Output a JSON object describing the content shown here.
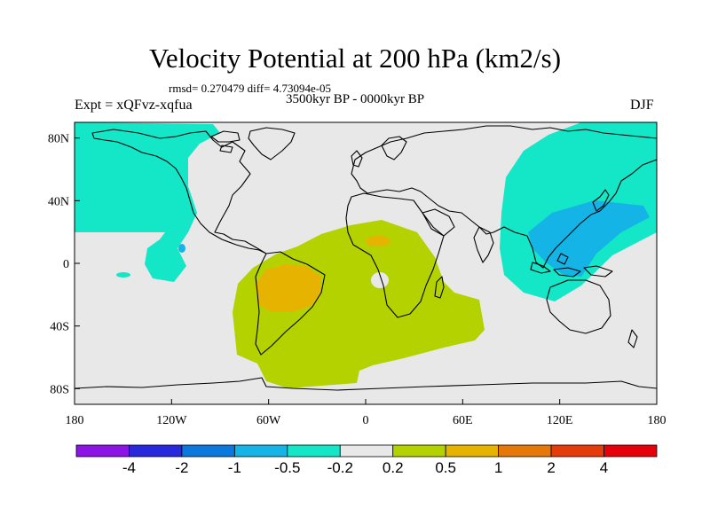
{
  "title": "Velocity Potential at 200 hPa (km2/s)",
  "rmsd_line": "rmsd= 0.270479 diff= 4.73094e-05",
  "experiment": "Expt = xQFvz-xqfua",
  "period": "3500kyr BP - 0000kyr BP",
  "season": "DJF",
  "map": {
    "projection": "cylindrical equidistant",
    "lon_range": [
      -180,
      180
    ],
    "lat_range": [
      -90,
      90
    ],
    "lat_ticks": [
      {
        "value": 80,
        "label": "80N"
      },
      {
        "value": 40,
        "label": "40N"
      },
      {
        "value": 0,
        "label": "0"
      },
      {
        "value": -40,
        "label": "40S"
      },
      {
        "value": -80,
        "label": "80S"
      }
    ],
    "lon_ticks": [
      {
        "value": -180,
        "label": "180"
      },
      {
        "value": -120,
        "label": "120W"
      },
      {
        "value": -60,
        "label": "60W"
      },
      {
        "value": 0,
        "label": "0"
      },
      {
        "value": 60,
        "label": "60E"
      },
      {
        "value": 120,
        "label": "120E"
      },
      {
        "value": 180,
        "label": "180"
      }
    ],
    "background_color": "#e8e8e8"
  },
  "colorbar": {
    "labels": [
      "-4",
      "-2",
      "-1",
      "-0.5",
      "-0.2",
      "0.2",
      "0.5",
      "1",
      "2",
      "4"
    ],
    "colors": [
      "#8c14e6",
      "#2828dc",
      "#0a78dc",
      "#14b4e6",
      "#14e6c8",
      "#e8e8e8",
      "#b4d200",
      "#e6b400",
      "#e6780a",
      "#e63c0a",
      "#e6000a"
    ]
  }
}
